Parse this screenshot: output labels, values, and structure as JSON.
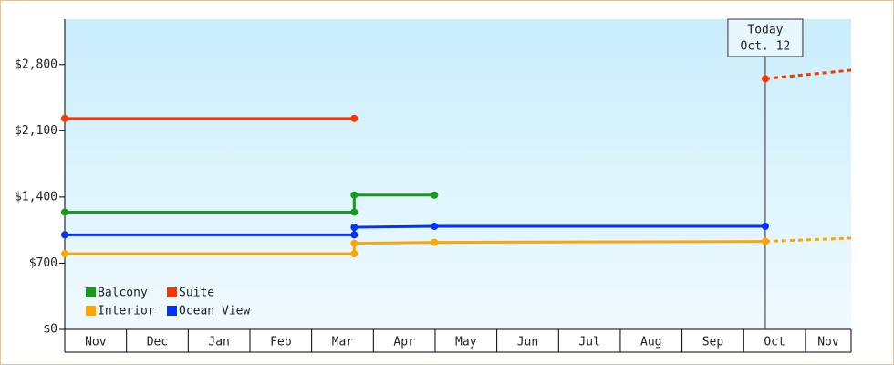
{
  "chart_data": {
    "type": "line",
    "months": [
      "Nov",
      "Dec",
      "Jan",
      "Feb",
      "Mar",
      "Apr",
      "May",
      "Jun",
      "Jul",
      "Aug",
      "Sep",
      "Oct",
      "Nov"
    ],
    "xlim": [
      0,
      12.74
    ],
    "ylim": [
      0,
      3280
    ],
    "yticks": [
      {
        "value": 0,
        "label": "$0"
      },
      {
        "value": 700,
        "label": "$700"
      },
      {
        "value": 1400,
        "label": "$1,400"
      },
      {
        "value": 2100,
        "label": "$2,100"
      },
      {
        "value": 2800,
        "label": "$2,800"
      }
    ],
    "series": [
      {
        "name": "Balcony",
        "color": "#1a9a1a",
        "x": [
          0,
          4.69,
          4.69,
          5.99
        ],
        "values": [
          1240,
          1240,
          1420,
          1420
        ],
        "projection_x": [],
        "projection_values": []
      },
      {
        "name": "Suite",
        "color": "#ff3300",
        "x": [
          0,
          4.69
        ],
        "values": [
          2230,
          2230
        ],
        "projection_x": [
          11.35,
          12.74
        ],
        "projection_values": [
          2650,
          2740
        ]
      },
      {
        "name": "Interior",
        "color": "#ffa500",
        "x": [
          0,
          4.69,
          4.69,
          5.99,
          11.35
        ],
        "values": [
          800,
          800,
          910,
          920,
          930
        ],
        "projection_x": [
          11.35,
          12.74
        ],
        "projection_values": [
          930,
          965
        ]
      },
      {
        "name": "Ocean View",
        "color": "#0033ff",
        "x": [
          0,
          4.69,
          4.69,
          5.99,
          11.35
        ],
        "values": [
          1000,
          1000,
          1080,
          1090,
          1090
        ],
        "projection_x": [],
        "projection_values": []
      }
    ],
    "annotation": {
      "x": 11.35,
      "title": "Today",
      "date": "Oct. 12"
    }
  }
}
